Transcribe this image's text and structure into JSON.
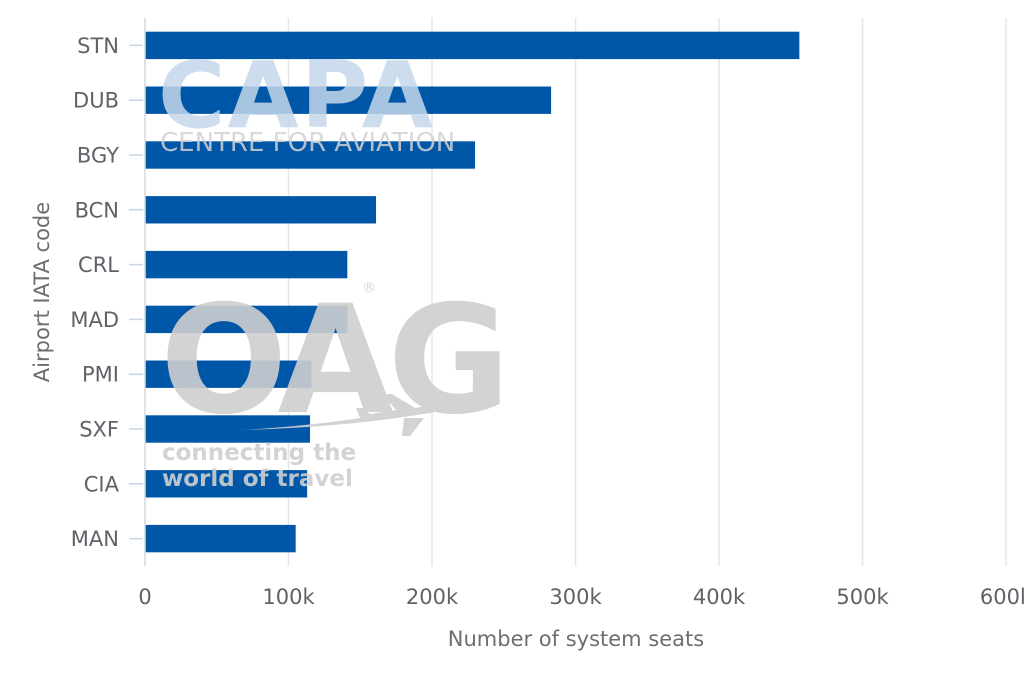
{
  "chart_data": {
    "type": "bar",
    "orientation": "horizontal",
    "categories": [
      "STN",
      "DUB",
      "BGY",
      "BCN",
      "CRL",
      "MAD",
      "PMI",
      "SXF",
      "CIA",
      "MAN"
    ],
    "values": [
      456000,
      283000,
      230000,
      161000,
      141000,
      141000,
      116000,
      115000,
      113000,
      105000
    ],
    "xlabel": "Number of system seats",
    "ylabel": "Airport IATA code",
    "xlim": [
      0,
      600000
    ],
    "x_ticks": [
      0,
      100000,
      200000,
      300000,
      400000,
      500000,
      600000
    ],
    "x_tick_labels": [
      "0",
      "100k",
      "200k",
      "300k",
      "400k",
      "500k",
      "600k"
    ],
    "grid": "vertical",
    "bar_color": "#0057a8"
  },
  "watermarks": {
    "capa": {
      "logo": "CAPA",
      "tagline": "CENTRE FOR AVIATION",
      "color": "#c5d8ea"
    },
    "oag": {
      "logo": "OAG",
      "registered": "®",
      "tagline_line1": "connecting the",
      "tagline_line2": "world of travel",
      "color": "#cfcfcf"
    }
  }
}
